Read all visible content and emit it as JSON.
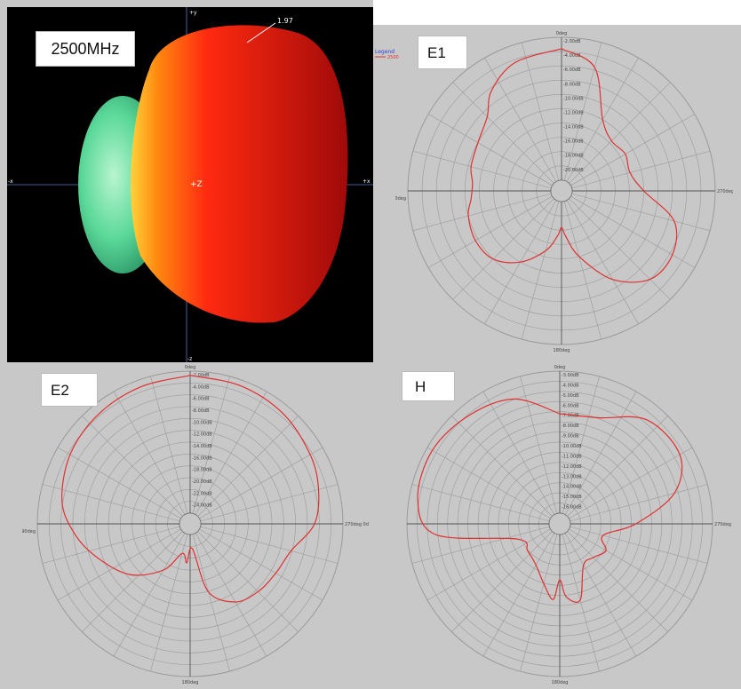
{
  "panels": {
    "frequency_label": "2500MHz",
    "pattern_3d": {
      "axis_y": "+y",
      "axis_z_neg": "-z",
      "axis_z_center": "+Z",
      "axis_x_pos": "+x",
      "axis_x_neg": "-x",
      "peak_value": "1.97"
    },
    "legend": {
      "title": "Legend",
      "entry": "2500"
    }
  },
  "colors": {
    "trace": "#e03030",
    "grid": "#9a9a9a",
    "background": "#c8c8c8",
    "hot": "#e01010",
    "cool": "#40d090"
  },
  "chart_data": [
    {
      "type": "polar",
      "title": "E1",
      "angle_labels": {
        "top": "0deg",
        "left": "90deg",
        "right": "270deg",
        "bottom": "180deg"
      },
      "radial_tick_labels": [
        "-2.00dB",
        "-4.00dB",
        "-6.00dB",
        "-8.00dB",
        "-10.00dB",
        "-12.00dB",
        "-14.00dB",
        "-16.00dB",
        "-18.00dB",
        "-20.00dB"
      ],
      "series": [
        {
          "angles_deg": [
            0,
            20,
            35,
            45,
            60,
            75,
            85,
            95,
            105,
            120,
            135,
            150,
            165,
            175,
            180,
            185,
            195,
            210,
            225,
            240,
            255,
            270,
            285,
            300,
            315,
            330,
            345,
            360
          ],
          "r_frac": [
            0.92,
            0.88,
            0.78,
            0.66,
            0.6,
            0.58,
            0.55,
            0.56,
            0.6,
            0.62,
            0.6,
            0.5,
            0.36,
            0.24,
            0.18,
            0.24,
            0.4,
            0.64,
            0.8,
            0.82,
            0.74,
            0.5,
            0.42,
            0.44,
            0.42,
            0.5,
            0.82,
            0.92
          ]
        }
      ]
    },
    {
      "type": "polar",
      "title": "E2",
      "angle_labels": {
        "top": "0deg",
        "left": "90deg",
        "right": "270deg 0deg",
        "bottom": "180deg"
      },
      "radial_tick_labels": [
        "-2.00dB",
        "-4.00dB",
        "-6.00dB",
        "-8.00dB",
        "-10.00dB",
        "-12.00dB",
        "-14.00dB",
        "-16.00dB",
        "-18.00dB",
        "-20.00dB",
        "-22.00dB",
        "-24.00dB"
      ],
      "series": [
        {
          "angles_deg": [
            0,
            20,
            40,
            60,
            80,
            95,
            110,
            130,
            150,
            165,
            175,
            185,
            195,
            210,
            225,
            240,
            255,
            270,
            285,
            300,
            320,
            340,
            360
          ],
          "r_frac": [
            0.97,
            0.95,
            0.93,
            0.9,
            0.84,
            0.74,
            0.62,
            0.48,
            0.3,
            0.14,
            0.2,
            0.1,
            0.42,
            0.56,
            0.6,
            0.62,
            0.66,
            0.8,
            0.86,
            0.9,
            0.94,
            0.96,
            0.97
          ]
        }
      ]
    },
    {
      "type": "polar",
      "title": "H",
      "angle_labels": {
        "top": "0deg",
        "left": "",
        "right": "270deg",
        "bottom": "180deg"
      },
      "radial_tick_labels": [
        "-3.00dB",
        "-4.00dB",
        "-5.00dB",
        "-6.00dB",
        "-7.00dB",
        "-8.00dB",
        "-9.00dB",
        "-10.00dB",
        "-11.00dB",
        "-12.00dB",
        "-13.00dB",
        "-14.00dB",
        "-15.00dB",
        "-16.00dB"
      ],
      "series": [
        {
          "angles_deg": [
            0,
            20,
            40,
            60,
            80,
            95,
            110,
            130,
            150,
            165,
            175,
            180,
            185,
            195,
            210,
            225,
            240,
            255,
            270,
            285,
            300,
            320,
            340,
            360
          ],
          "r_frac": [
            0.7,
            0.86,
            0.92,
            0.96,
            0.94,
            0.8,
            0.24,
            0.22,
            0.26,
            0.36,
            0.46,
            0.32,
            0.44,
            0.48,
            0.26,
            0.26,
            0.3,
            0.24,
            0.46,
            0.76,
            0.9,
            0.88,
            0.72,
            0.7
          ]
        }
      ]
    }
  ]
}
